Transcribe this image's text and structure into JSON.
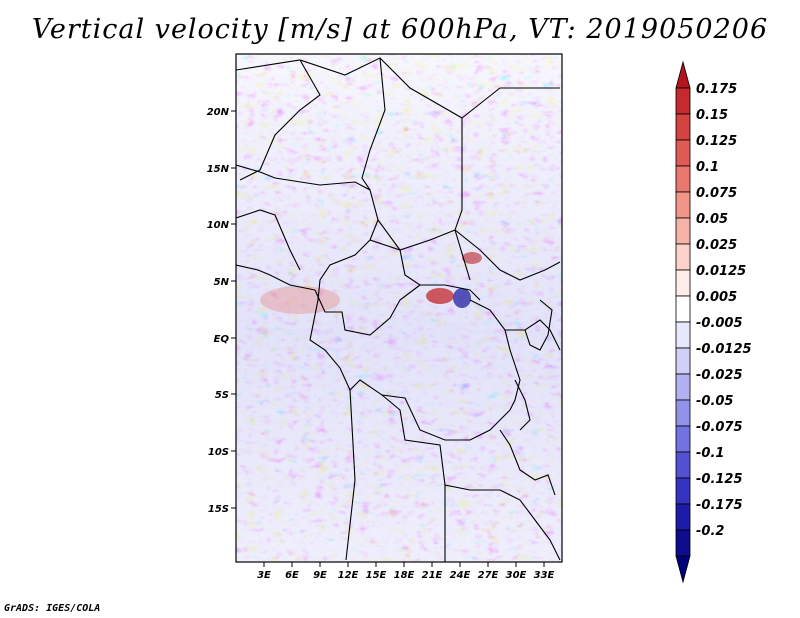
{
  "title": "Vertical velocity [m/s] at 600hPa, VT: 2019050206",
  "credit": "GrADS: IGES/COLA",
  "lat_labels": [
    "20N",
    "15N",
    "10N",
    "5N",
    "EQ",
    "5S",
    "10S",
    "15S"
  ],
  "lon_labels": [
    "3E",
    "6E",
    "9E",
    "12E",
    "15E",
    "18E",
    "21E",
    "24E",
    "27E",
    "30E",
    "33E"
  ],
  "colorbar": {
    "labels": [
      "0.175",
      "0.15",
      "0.125",
      "0.1",
      "0.075",
      "0.05",
      "0.025",
      "0.0125",
      "0.005",
      "-0.005",
      "-0.0125",
      "-0.025",
      "-0.05",
      "-0.075",
      "-0.1",
      "-0.125",
      "-0.175",
      "-0.2"
    ],
    "colors": [
      "#b4151c",
      "#c42a2e",
      "#d3433f",
      "#df5b55",
      "#e9786e",
      "#f19589",
      "#f6b3a8",
      "#fad2cb",
      "#fdeeea",
      "#ffffff",
      "#e8e8fc",
      "#cfcff8",
      "#b2b2f2",
      "#9292ea",
      "#7272e0",
      "#5252d2",
      "#3434c0",
      "#1c1ca8",
      "#0c0c8c",
      "#00007a"
    ]
  },
  "map_region": "Central Africa, approx. 0E-35E, 20S-25N",
  "field_colors": {
    "positive": "#e8736b",
    "negative": "#7b7bea",
    "neutral": "#ffffff"
  }
}
